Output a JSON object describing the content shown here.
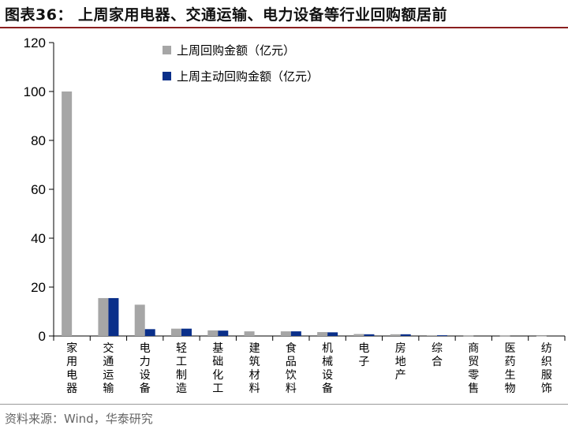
{
  "figure": {
    "title": "图表36：  上周家用电器、交通运输、电力设备等行业回购额居前",
    "source": "资料来源：Wind，华泰研究"
  },
  "colors": {
    "series_gray": "#a6a6a6",
    "series_navy": "#0a2f8a",
    "title_rule": "#8a1f1f"
  },
  "chart_data": {
    "type": "bar",
    "categories": [
      "家用电器",
      "交通运输",
      "电力设备",
      "轻工制造",
      "基础化工",
      "建筑材料",
      "食品饮料",
      "机械设备",
      "电子",
      "房地产",
      "综合",
      "商贸零售",
      "医药生物",
      "纺织服饰"
    ],
    "series": [
      {
        "name": "上周回购金额（亿元）",
        "values": [
          100,
          15.5,
          12.8,
          3.0,
          2.3,
          1.9,
          1.9,
          1.6,
          0.8,
          0.7,
          0.3,
          0.1,
          0.1,
          0.05
        ]
      },
      {
        "name": "上周主动回购金额（亿元）",
        "values": [
          0,
          15.5,
          2.8,
          3.0,
          2.2,
          0,
          1.9,
          1.5,
          0.7,
          0.7,
          0.3,
          0,
          0,
          0
        ]
      }
    ],
    "ylim": [
      0,
      120
    ],
    "yticks": [
      0,
      20,
      40,
      60,
      80,
      100,
      120
    ],
    "grid": false,
    "legend": "top-center"
  }
}
